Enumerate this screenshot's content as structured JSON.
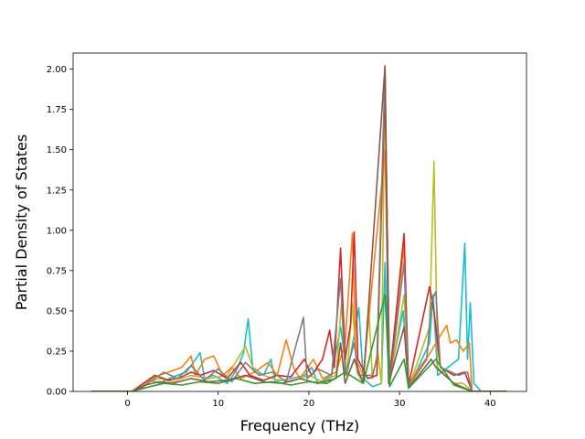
{
  "chart_data": {
    "type": "line",
    "title": "",
    "xlabel": "Frequency (THz)",
    "ylabel": "Partial Density of States",
    "xlim": [
      -6.0,
      44.0
    ],
    "ylim": [
      0.0,
      2.1
    ],
    "x_ticks": [
      0,
      10,
      20,
      30,
      40
    ],
    "x_tick_labels": [
      "0",
      "10",
      "20",
      "30",
      "40"
    ],
    "y_ticks": [
      0.0,
      0.25,
      0.5,
      0.75,
      1.0,
      1.25,
      1.5,
      1.75,
      2.0
    ],
    "y_tick_labels": [
      "0.00",
      "0.25",
      "0.50",
      "0.75",
      "1.00",
      "1.25",
      "1.50",
      "1.75",
      "2.00"
    ],
    "grid": false,
    "legend": "none",
    "series": [
      {
        "color": "#17becf",
        "points": [
          [
            -4,
            0
          ],
          [
            0.5,
            0
          ],
          [
            1.5,
            0.03
          ],
          [
            2.5,
            0.07
          ],
          [
            3.5,
            0.05
          ],
          [
            5,
            0.09
          ],
          [
            6.5,
            0.12
          ],
          [
            7.5,
            0.2
          ],
          [
            8,
            0.24
          ],
          [
            8.5,
            0.08
          ],
          [
            9.5,
            0.1
          ],
          [
            11,
            0.05
          ],
          [
            12,
            0.13
          ],
          [
            12.8,
            0.24
          ],
          [
            13.3,
            0.45
          ],
          [
            13.8,
            0.15
          ],
          [
            15,
            0.1
          ],
          [
            15.8,
            0.2
          ],
          [
            16.3,
            0.06
          ],
          [
            18,
            0.08
          ],
          [
            19.5,
            0.1
          ],
          [
            20.3,
            0.15
          ],
          [
            21,
            0.05
          ],
          [
            22.5,
            0.1
          ],
          [
            23.5,
            0.4
          ],
          [
            24.2,
            0.1
          ],
          [
            25,
            0.35
          ],
          [
            25.5,
            0.52
          ],
          [
            26,
            0.08
          ],
          [
            27,
            0.03
          ],
          [
            28,
            0.05
          ],
          [
            28.4,
            0.8
          ],
          [
            28.8,
            0.05
          ],
          [
            30.4,
            0.5
          ],
          [
            31,
            0.02
          ],
          [
            33.3,
            0.3
          ],
          [
            33.7,
            0.6
          ],
          [
            34.2,
            0.1
          ],
          [
            36.5,
            0.2
          ],
          [
            37.2,
            0.92
          ],
          [
            37.5,
            0.2
          ],
          [
            37.8,
            0.55
          ],
          [
            38.2,
            0.05
          ],
          [
            39,
            0
          ],
          [
            41.8,
            0
          ]
        ]
      },
      {
        "color": "#bcbd22",
        "points": [
          [
            -4,
            0
          ],
          [
            0.5,
            0
          ],
          [
            2,
            0.05
          ],
          [
            3.5,
            0.08
          ],
          [
            5,
            0.06
          ],
          [
            7,
            0.1
          ],
          [
            9,
            0.08
          ],
          [
            11,
            0.1
          ],
          [
            13,
            0.28
          ],
          [
            14,
            0.12
          ],
          [
            16,
            0.08
          ],
          [
            18,
            0.06
          ],
          [
            20,
            0.1
          ],
          [
            21.5,
            0.06
          ],
          [
            23,
            0.1
          ],
          [
            23.6,
            0.55
          ],
          [
            24.2,
            0.1
          ],
          [
            24.8,
            0.55
          ],
          [
            25.3,
            0.12
          ],
          [
            26,
            0.05
          ],
          [
            26.6,
            0.53
          ],
          [
            27,
            0.08
          ],
          [
            27.6,
            0.25
          ],
          [
            28,
            0.05
          ],
          [
            28.4,
            2.02
          ],
          [
            28.9,
            0.05
          ],
          [
            30.5,
            0.6
          ],
          [
            31,
            0.02
          ],
          [
            33.3,
            0.4
          ],
          [
            33.8,
            1.43
          ],
          [
            34.2,
            0.15
          ],
          [
            35,
            0.1
          ],
          [
            36,
            0.05
          ],
          [
            37,
            0.05
          ],
          [
            38,
            0
          ],
          [
            41.8,
            0
          ]
        ]
      },
      {
        "color": "#ff7f0e",
        "points": [
          [
            -4,
            0
          ],
          [
            0.5,
            0
          ],
          [
            1.5,
            0.04
          ],
          [
            3,
            0.09
          ],
          [
            4.5,
            0.12
          ],
          [
            6,
            0.15
          ],
          [
            7,
            0.22
          ],
          [
            7.5,
            0.1
          ],
          [
            8.5,
            0.2
          ],
          [
            9.5,
            0.22
          ],
          [
            10.5,
            0.1
          ],
          [
            11.5,
            0.15
          ],
          [
            12.5,
            0.08
          ],
          [
            14,
            0.12
          ],
          [
            15.5,
            0.18
          ],
          [
            16.5,
            0.1
          ],
          [
            17.5,
            0.32
          ],
          [
            18.3,
            0.15
          ],
          [
            19,
            0.08
          ],
          [
            20.5,
            0.2
          ],
          [
            21.5,
            0.08
          ],
          [
            23,
            0.12
          ],
          [
            24,
            0.3
          ],
          [
            24.8,
            0.98
          ],
          [
            25.2,
            0.2
          ],
          [
            26,
            0.1
          ],
          [
            28.4,
            1.5
          ],
          [
            28.9,
            0.1
          ],
          [
            30.5,
            0.9
          ],
          [
            31,
            0.05
          ],
          [
            33.5,
            0.25
          ],
          [
            34,
            0.3
          ],
          [
            35.2,
            0.41
          ],
          [
            35.6,
            0.3
          ],
          [
            36.3,
            0.32
          ],
          [
            37,
            0.25
          ],
          [
            37.7,
            0.3
          ],
          [
            38,
            0
          ],
          [
            41.8,
            0
          ]
        ]
      },
      {
        "color": "#d62728",
        "points": [
          [
            -4,
            0
          ],
          [
            0.5,
            0
          ],
          [
            2,
            0.06
          ],
          [
            3,
            0.1
          ],
          [
            4.5,
            0.07
          ],
          [
            6,
            0.09
          ],
          [
            7,
            0.12
          ],
          [
            8,
            0.1
          ],
          [
            9.5,
            0.13
          ],
          [
            11,
            0.08
          ],
          [
            12.5,
            0.18
          ],
          [
            13.5,
            0.1
          ],
          [
            15,
            0.07
          ],
          [
            16.5,
            0.1
          ],
          [
            18,
            0.09
          ],
          [
            19.5,
            0.2
          ],
          [
            20.3,
            0.1
          ],
          [
            21.5,
            0.2
          ],
          [
            22.3,
            0.38
          ],
          [
            22.8,
            0.15
          ],
          [
            23.5,
            0.89
          ],
          [
            24,
            0.2
          ],
          [
            24.6,
            0.42
          ],
          [
            25,
            0.99
          ],
          [
            25.4,
            0.2
          ],
          [
            26.5,
            0.08
          ],
          [
            27.5,
            0.1
          ],
          [
            28.4,
            1.9
          ],
          [
            28.9,
            0.08
          ],
          [
            30.5,
            0.98
          ],
          [
            31,
            0.04
          ],
          [
            33.3,
            0.65
          ],
          [
            33.8,
            0.5
          ],
          [
            34.5,
            0.15
          ],
          [
            36,
            0.1
          ],
          [
            37.2,
            0.12
          ],
          [
            38,
            0
          ],
          [
            41.8,
            0
          ]
        ]
      },
      {
        "color": "#7f7f7f",
        "points": [
          [
            -4,
            0
          ],
          [
            0.5,
            0
          ],
          [
            1.5,
            0.02
          ],
          [
            2.5,
            0.06
          ],
          [
            4,
            0.12
          ],
          [
            5.5,
            0.08
          ],
          [
            7,
            0.16
          ],
          [
            8.5,
            0.07
          ],
          [
            10,
            0.14
          ],
          [
            11.5,
            0.06
          ],
          [
            13,
            0.18
          ],
          [
            14.5,
            0.1
          ],
          [
            16,
            0.12
          ],
          [
            17.5,
            0.06
          ],
          [
            19.4,
            0.46
          ],
          [
            19.8,
            0.08
          ],
          [
            21,
            0.14
          ],
          [
            22.5,
            0.1
          ],
          [
            23.5,
            0.7
          ],
          [
            24,
            0.1
          ],
          [
            25,
            0.3
          ],
          [
            25.5,
            0.1
          ],
          [
            27,
            0.1
          ],
          [
            27.5,
            0.2
          ],
          [
            28.4,
            2.0
          ],
          [
            28.9,
            0.05
          ],
          [
            30.5,
            0.8
          ],
          [
            31,
            0.03
          ],
          [
            33,
            0.2
          ],
          [
            33.5,
            0.55
          ],
          [
            34,
            0.62
          ],
          [
            34.5,
            0.15
          ],
          [
            36.5,
            0.1
          ],
          [
            37.5,
            0.12
          ],
          [
            38,
            0
          ],
          [
            41.8,
            0
          ]
        ]
      },
      {
        "color": "#8c564b",
        "points": [
          [
            -4,
            0
          ],
          [
            0.5,
            0
          ],
          [
            2,
            0.04
          ],
          [
            3.5,
            0.06
          ],
          [
            5,
            0.05
          ],
          [
            7,
            0.08
          ],
          [
            9,
            0.06
          ],
          [
            11,
            0.07
          ],
          [
            13,
            0.1
          ],
          [
            15,
            0.06
          ],
          [
            17,
            0.05
          ],
          [
            19,
            0.08
          ],
          [
            21,
            0.05
          ],
          [
            23,
            0.08
          ],
          [
            23.5,
            0.3
          ],
          [
            24,
            0.05
          ],
          [
            25,
            0.2
          ],
          [
            26,
            0.05
          ],
          [
            28.4,
            2.02
          ],
          [
            28.8,
            0.05
          ],
          [
            30.5,
            0.4
          ],
          [
            31,
            0.02
          ],
          [
            33.5,
            0.2
          ],
          [
            34,
            0.15
          ],
          [
            36,
            0.05
          ],
          [
            38,
            0
          ],
          [
            41.8,
            0
          ]
        ]
      },
      {
        "color": "#2ca02c",
        "points": [
          [
            -4,
            0
          ],
          [
            0.5,
            0
          ],
          [
            2.5,
            0.03
          ],
          [
            4,
            0.05
          ],
          [
            6,
            0.04
          ],
          [
            8,
            0.06
          ],
          [
            10,
            0.05
          ],
          [
            12,
            0.08
          ],
          [
            14,
            0.05
          ],
          [
            16,
            0.06
          ],
          [
            18,
            0.04
          ],
          [
            20,
            0.06
          ],
          [
            22,
            0.05
          ],
          [
            24,
            0.12
          ],
          [
            26,
            0.05
          ],
          [
            28.4,
            0.6
          ],
          [
            28.9,
            0.03
          ],
          [
            30.5,
            0.2
          ],
          [
            31,
            0.02
          ],
          [
            34,
            0.2
          ],
          [
            36,
            0.04
          ],
          [
            38,
            0
          ],
          [
            41.8,
            0
          ]
        ]
      }
    ]
  }
}
